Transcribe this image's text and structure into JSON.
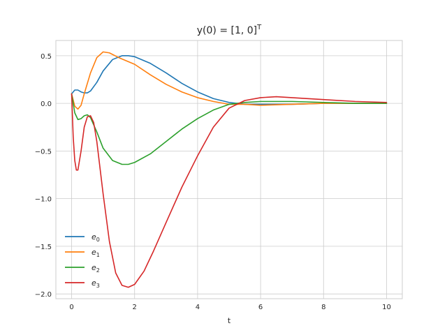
{
  "chart_data": {
    "type": "line",
    "title": "y(0) = [1, 0]",
    "title_superscript": "T",
    "xlabel": "t",
    "ylabel": "",
    "xlim": [
      -0.5,
      10.5
    ],
    "ylim": [
      -2.05,
      0.66
    ],
    "xticks": [
      0,
      2,
      4,
      6,
      8,
      10
    ],
    "yticks": [
      0.5,
      0.0,
      -0.5,
      -1.0,
      -1.5,
      -2.0
    ],
    "ytick_labels": [
      "0.5",
      "0.0",
      "−0.5",
      "−1.0",
      "−1.5",
      "−2.0"
    ],
    "grid": true,
    "legend_position": "lower-left",
    "series": [
      {
        "name": "e",
        "subscript": "0",
        "color": "#1f77b4",
        "x": [
          0,
          0.1,
          0.2,
          0.3,
          0.4,
          0.5,
          0.6,
          0.8,
          1.0,
          1.3,
          1.6,
          1.8,
          2.0,
          2.5,
          3.0,
          3.5,
          4.0,
          4.5,
          5.0,
          5.5,
          6.0,
          7.0,
          8.0,
          9.0,
          10.0
        ],
        "y": [
          0.1,
          0.14,
          0.14,
          0.12,
          0.11,
          0.11,
          0.13,
          0.22,
          0.34,
          0.46,
          0.5,
          0.5,
          0.49,
          0.42,
          0.32,
          0.21,
          0.12,
          0.05,
          0.01,
          -0.01,
          -0.01,
          -0.01,
          0.0,
          0.0,
          0.0
        ]
      },
      {
        "name": "e",
        "subscript": "1",
        "color": "#ff7f0e",
        "x": [
          0,
          0.1,
          0.2,
          0.3,
          0.4,
          0.6,
          0.8,
          1.0,
          1.2,
          1.5,
          2.0,
          2.5,
          3.0,
          3.5,
          4.0,
          4.5,
          5.0,
          5.5,
          6.0,
          7.0,
          8.0,
          9.0,
          10.0
        ],
        "y": [
          0.1,
          -0.03,
          -0.06,
          -0.02,
          0.1,
          0.32,
          0.48,
          0.54,
          0.53,
          0.48,
          0.41,
          0.3,
          0.2,
          0.12,
          0.06,
          0.02,
          -0.01,
          -0.01,
          -0.02,
          -0.01,
          0.0,
          0.0,
          0.0
        ]
      },
      {
        "name": "e",
        "subscript": "2",
        "color": "#2ca02c",
        "x": [
          0,
          0.1,
          0.2,
          0.3,
          0.4,
          0.5,
          0.6,
          0.8,
          1.0,
          1.3,
          1.6,
          1.8,
          2.0,
          2.5,
          3.0,
          3.5,
          4.0,
          4.5,
          5.0,
          5.5,
          6.0,
          7.0,
          8.0,
          9.0,
          10.0
        ],
        "y": [
          0.1,
          -0.1,
          -0.17,
          -0.16,
          -0.13,
          -0.12,
          -0.15,
          -0.3,
          -0.47,
          -0.6,
          -0.64,
          -0.64,
          -0.62,
          -0.53,
          -0.4,
          -0.27,
          -0.16,
          -0.07,
          -0.01,
          0.01,
          0.02,
          0.02,
          0.01,
          0.0,
          0.0
        ]
      },
      {
        "name": "e",
        "subscript": "3",
        "color": "#d62728",
        "x": [
          0,
          0.05,
          0.1,
          0.15,
          0.2,
          0.3,
          0.4,
          0.5,
          0.6,
          0.7,
          0.8,
          1.0,
          1.2,
          1.4,
          1.6,
          1.8,
          2.0,
          2.3,
          2.6,
          3.0,
          3.5,
          4.0,
          4.5,
          5.0,
          5.5,
          6.0,
          6.5,
          7.0,
          8.0,
          9.0,
          10.0
        ],
        "y": [
          0.1,
          -0.35,
          -0.6,
          -0.7,
          -0.7,
          -0.5,
          -0.25,
          -0.14,
          -0.13,
          -0.2,
          -0.4,
          -0.95,
          -1.45,
          -1.78,
          -1.91,
          -1.93,
          -1.9,
          -1.76,
          -1.55,
          -1.25,
          -0.88,
          -0.55,
          -0.25,
          -0.05,
          0.03,
          0.06,
          0.07,
          0.06,
          0.04,
          0.02,
          0.01
        ]
      }
    ]
  }
}
